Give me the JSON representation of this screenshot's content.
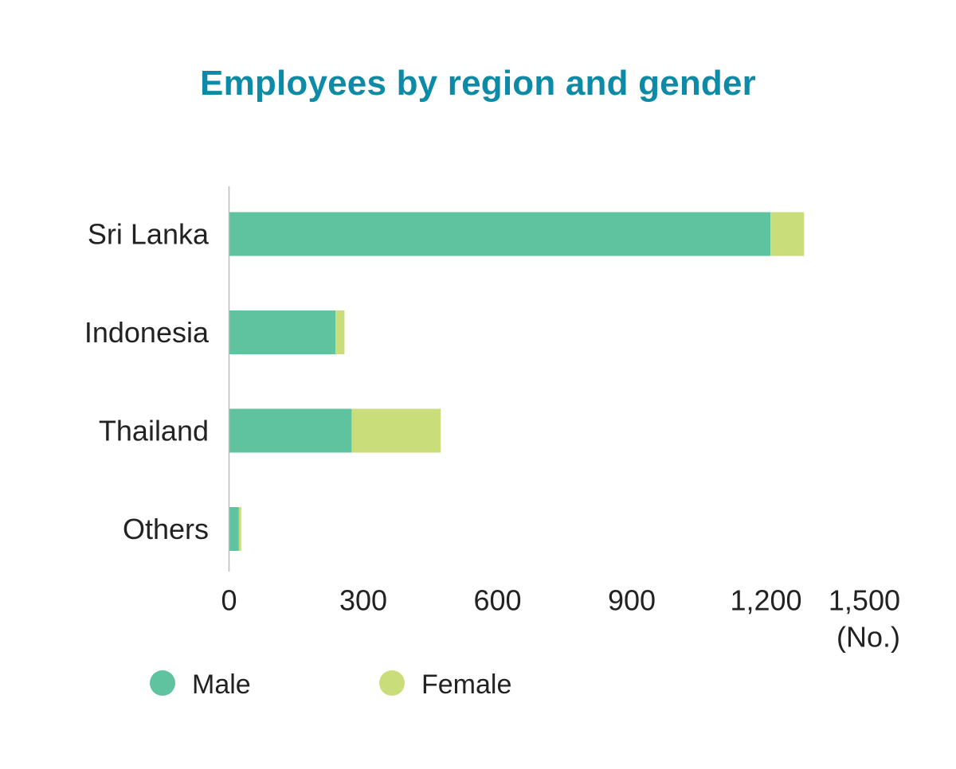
{
  "chart_data": {
    "type": "bar",
    "orientation": "horizontal",
    "stacked": true,
    "title": "Employees by region and gender",
    "categories": [
      "Sri Lanka",
      "Indonesia",
      "Thailand",
      "Others"
    ],
    "series": [
      {
        "name": "Male",
        "color": "#5fc3a0",
        "values": [
          1210,
          238,
          274,
          22
        ]
      },
      {
        "name": "Female",
        "color": "#c9de7a",
        "values": [
          75,
          20,
          199,
          5
        ]
      }
    ],
    "x_ticks": [
      "0",
      "300",
      "600",
      "900",
      "1,200",
      "1,500"
    ],
    "x_tick_values": [
      0,
      300,
      600,
      900,
      1200,
      1500
    ],
    "xlim": [
      0,
      1500
    ],
    "unit_label": "(No.)",
    "grid": false,
    "legend_position": "bottom-left",
    "colors": {
      "title": "#0d8aa6",
      "text": "#222222",
      "axis": "#bbbbbb"
    }
  }
}
